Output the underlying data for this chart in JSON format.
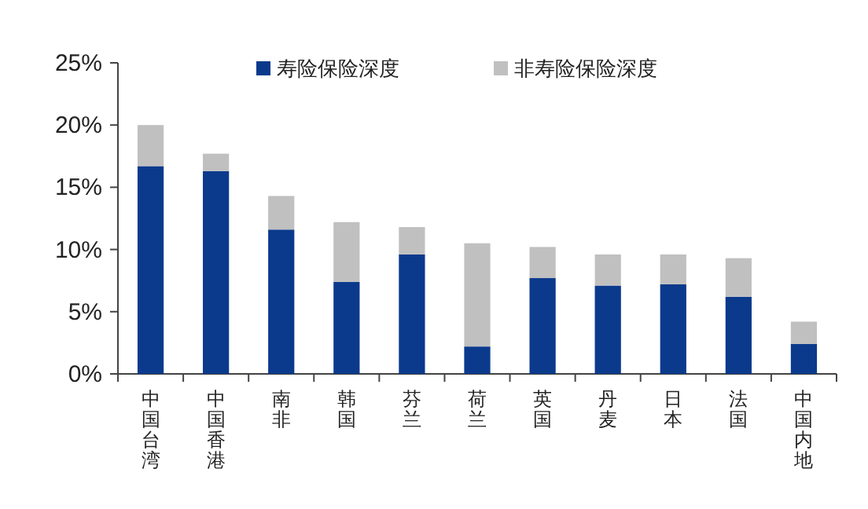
{
  "chart_data": {
    "type": "bar",
    "stacked": true,
    "categories": [
      "中国台湾",
      "中国香港",
      "南非",
      "韩国",
      "芬兰",
      "荷兰",
      "英国",
      "丹麦",
      "日本",
      "法国",
      "中国内地"
    ],
    "series": [
      {
        "name": "寿险保险深度",
        "color": "#0b3a8c",
        "values": [
          16.7,
          16.3,
          11.6,
          7.4,
          9.6,
          2.2,
          7.7,
          7.1,
          7.2,
          6.2,
          2.4
        ]
      },
      {
        "name": "非寿险保险深度",
        "color": "#c0c0c0",
        "values": [
          3.3,
          1.4,
          2.7,
          4.8,
          2.2,
          8.3,
          2.5,
          2.5,
          2.4,
          3.1,
          1.8
        ]
      }
    ],
    "ylim": [
      0,
      25
    ],
    "yticks": [
      {
        "value": 0,
        "label": "0%"
      },
      {
        "value": 5,
        "label": "5%"
      },
      {
        "value": 10,
        "label": "10%"
      },
      {
        "value": 15,
        "label": "15%"
      },
      {
        "value": 20,
        "label": "20%"
      },
      {
        "value": 25,
        "label": "25%"
      }
    ],
    "legend": "top",
    "grid": false
  }
}
